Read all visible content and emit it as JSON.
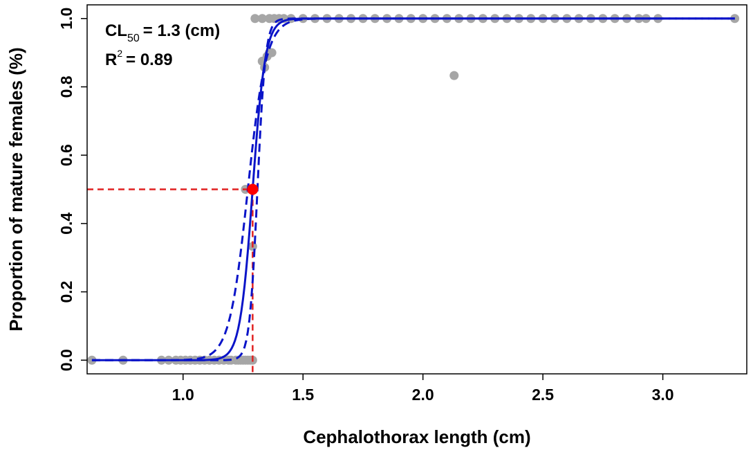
{
  "chart_data": {
    "type": "scatter",
    "title": "",
    "xlabel": "Cephalothorax length (cm)",
    "ylabel": "Proportion of mature females (%)",
    "xlim": [
      0.6,
      3.35
    ],
    "ylim": [
      -0.04,
      1.04
    ],
    "x_ticks": [
      1.0,
      1.5,
      2.0,
      2.5,
      3.0
    ],
    "x_tick_labels": [
      "1.0",
      "1.5",
      "2.0",
      "2.5",
      "3.0"
    ],
    "y_ticks": [
      0.0,
      0.2,
      0.4,
      0.6,
      0.8,
      1.0
    ],
    "y_tick_labels": [
      "0.0",
      "0.2",
      "0.4",
      "0.6",
      "0.8",
      "1.0"
    ],
    "grid": false,
    "annotation": {
      "cl_prefix": "CL",
      "cl_sub": "50",
      "cl_suffix": "= 1.3 (cm)",
      "r_prefix": "R",
      "r_sup": "2",
      "r_suffix": "= 0.89"
    },
    "colors": {
      "points": "#a6a6a6",
      "fit": "#0a14c8",
      "reference": "#e02020",
      "l50_point": "#ff0000"
    },
    "series": [
      {
        "type": "scatter",
        "points": [
          [
            0.62,
            0.0
          ],
          [
            0.75,
            0.0
          ],
          [
            0.91,
            0.0
          ],
          [
            0.94,
            0.0
          ],
          [
            0.97,
            0.0
          ],
          [
            0.99,
            0.0
          ],
          [
            1.01,
            0.0
          ],
          [
            1.03,
            0.0
          ],
          [
            1.05,
            0.0
          ],
          [
            1.07,
            0.0
          ],
          [
            1.09,
            0.0
          ],
          [
            1.11,
            0.0
          ],
          [
            1.13,
            0.0
          ],
          [
            1.15,
            0.0
          ],
          [
            1.17,
            0.0
          ],
          [
            1.19,
            0.0
          ],
          [
            1.2,
            0.0
          ],
          [
            1.22,
            0.0
          ],
          [
            1.23,
            0.0
          ],
          [
            1.24,
            0.0
          ],
          [
            1.25,
            0.0
          ],
          [
            1.26,
            0.0
          ],
          [
            1.27,
            0.0
          ],
          [
            1.28,
            0.0
          ],
          [
            1.29,
            0.0
          ],
          [
            1.26,
            0.5
          ],
          [
            1.29,
            0.333
          ],
          [
            1.33,
            0.875
          ],
          [
            1.34,
            0.857
          ],
          [
            1.35,
            0.889
          ],
          [
            1.36,
            0.9
          ],
          [
            1.37,
            0.9
          ],
          [
            2.13,
            0.833
          ],
          [
            1.3,
            1.0
          ],
          [
            1.33,
            1.0
          ],
          [
            1.36,
            1.0
          ],
          [
            1.38,
            1.0
          ],
          [
            1.4,
            1.0
          ],
          [
            1.42,
            1.0
          ],
          [
            1.45,
            1.0
          ],
          [
            1.5,
            1.0
          ],
          [
            1.55,
            1.0
          ],
          [
            1.6,
            1.0
          ],
          [
            1.65,
            1.0
          ],
          [
            1.7,
            1.0
          ],
          [
            1.75,
            1.0
          ],
          [
            1.8,
            1.0
          ],
          [
            1.85,
            1.0
          ],
          [
            1.9,
            1.0
          ],
          [
            1.95,
            1.0
          ],
          [
            2.0,
            1.0
          ],
          [
            2.05,
            1.0
          ],
          [
            2.1,
            1.0
          ],
          [
            2.15,
            1.0
          ],
          [
            2.2,
            1.0
          ],
          [
            2.25,
            1.0
          ],
          [
            2.3,
            1.0
          ],
          [
            2.35,
            1.0
          ],
          [
            2.4,
            1.0
          ],
          [
            2.45,
            1.0
          ],
          [
            2.5,
            1.0
          ],
          [
            2.55,
            1.0
          ],
          [
            2.6,
            1.0
          ],
          [
            2.65,
            1.0
          ],
          [
            2.7,
            1.0
          ],
          [
            2.75,
            1.0
          ],
          [
            2.8,
            1.0
          ],
          [
            2.85,
            1.0
          ],
          [
            2.9,
            1.0
          ],
          [
            2.93,
            1.0
          ],
          [
            2.98,
            1.0
          ],
          [
            3.3,
            1.0
          ]
        ]
      },
      {
        "type": "logistic_fit",
        "l50": 1.29,
        "slope": 38,
        "x_range": [
          0.62,
          3.3
        ]
      },
      {
        "type": "logistic_ci_lower",
        "l50": 1.27,
        "slope": 26,
        "x_range": [
          0.62,
          3.3
        ]
      },
      {
        "type": "logistic_ci_upper",
        "l50": 1.31,
        "slope": 60,
        "x_range": [
          0.62,
          3.3
        ]
      },
      {
        "type": "l50_point",
        "x": 1.29,
        "y": 0.5
      }
    ]
  }
}
